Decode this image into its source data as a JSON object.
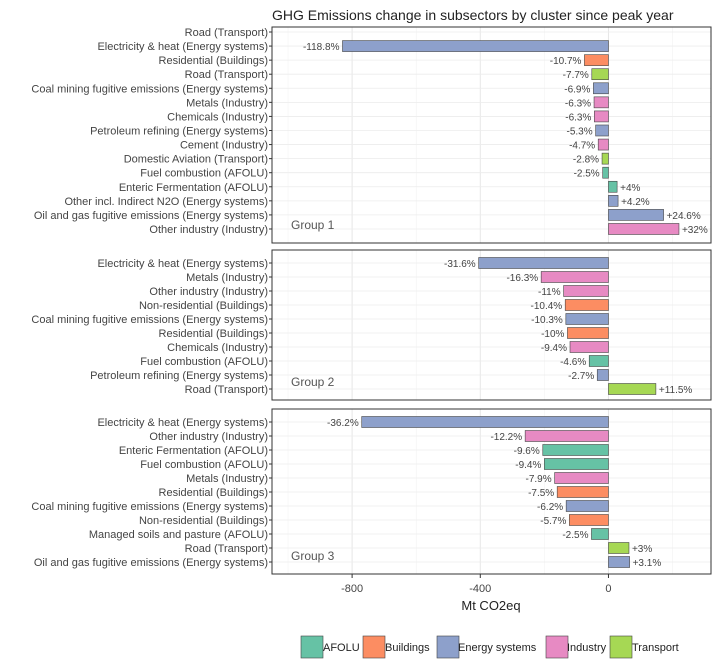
{
  "chart_data": {
    "type": "bar",
    "orientation": "horizontal",
    "title": "GHG Emissions change in subsectors by cluster since peak year",
    "xlabel": "Mt CO2eq",
    "xlim": [
      -1050,
      320
    ],
    "xticks": [
      -800,
      -400,
      0
    ],
    "xtick_labels": [
      "-800",
      "-400",
      "0"
    ],
    "grid": true,
    "legend_position": "bottom",
    "colors": {
      "AFOLU": "#66c2a5",
      "Buildings": "#fc8d62",
      "Energy systems": "#8da0cb",
      "Industry": "#e78ac3",
      "Transport": "#a6d854"
    },
    "legend": [
      "AFOLU",
      "Buildings",
      "Energy systems",
      "Industry",
      "Transport"
    ],
    "panels": [
      {
        "label": "Group 1",
        "bars": [
          {
            "category": "Road  (Transport)",
            "sector": "",
            "value": null,
            "label": ""
          },
          {
            "category": "Electricity & heat (Energy systems)",
            "sector": "Energy systems",
            "value": -830,
            "label": "-118.8%"
          },
          {
            "category": "Residential (Buildings)",
            "sector": "Buildings",
            "value": -75,
            "label": "-10.7%"
          },
          {
            "category": "Road  (Transport)",
            "sector": "Transport",
            "value": -52,
            "label": "-7.7%"
          },
          {
            "category": "Coal mining fugitive emissions (Energy systems)",
            "sector": "Energy systems",
            "value": -47,
            "label": "-6.9%"
          },
          {
            "category": "Metals (Industry)",
            "sector": "Industry",
            "value": -45,
            "label": "-6.3%"
          },
          {
            "category": "Chemicals (Industry)",
            "sector": "Industry",
            "value": -44,
            "label": "-6.3%"
          },
          {
            "category": "Petroleum refining (Energy systems)",
            "sector": "Energy systems",
            "value": -40,
            "label": "-5.3%"
          },
          {
            "category": "Cement (Industry)",
            "sector": "Industry",
            "value": -32,
            "label": "-4.7%"
          },
          {
            "category": "Domestic Aviation (Transport)",
            "sector": "Transport",
            "value": -20,
            "label": "-2.8%"
          },
          {
            "category": "Fuel combustion (AFOLU)",
            "sector": "AFOLU",
            "value": -18,
            "label": "-2.5%"
          },
          {
            "category": "Enteric Fermentation (AFOLU)",
            "sector": "AFOLU",
            "value": 27,
            "label": "+4%"
          },
          {
            "category": "Other incl. Indirect N2O (Energy systems)",
            "sector": "Energy systems",
            "value": 30,
            "label": "+4.2%"
          },
          {
            "category": "Oil and gas fugitive emissions (Energy systems)",
            "sector": "Energy systems",
            "value": 172,
            "label": "+24.6%"
          },
          {
            "category": "Other industry (Industry)",
            "sector": "Industry",
            "value": 220,
            "label": "+32%"
          }
        ]
      },
      {
        "label": "Group 2",
        "bars": [
          {
            "category": "Electricity & heat (Energy systems)",
            "sector": "Energy systems",
            "value": -405,
            "label": "-31.6%"
          },
          {
            "category": "Metals (Industry)",
            "sector": "Industry",
            "value": -210,
            "label": "-16.3%"
          },
          {
            "category": "Other industry (Industry)",
            "sector": "Industry",
            "value": -140,
            "label": "-11%"
          },
          {
            "category": "Non-residential (Buildings)",
            "sector": "Buildings",
            "value": -135,
            "label": "-10.4%"
          },
          {
            "category": "Coal mining fugitive emissions (Energy systems)",
            "sector": "Energy systems",
            "value": -133,
            "label": "-10.3%"
          },
          {
            "category": "Residential (Buildings)",
            "sector": "Buildings",
            "value": -128,
            "label": "-10%"
          },
          {
            "category": "Chemicals (Industry)",
            "sector": "Industry",
            "value": -120,
            "label": "-9.4%"
          },
          {
            "category": "Fuel combustion (AFOLU)",
            "sector": "AFOLU",
            "value": -60,
            "label": "-4.6%"
          },
          {
            "category": "Petroleum refining (Energy systems)",
            "sector": "Energy systems",
            "value": -35,
            "label": "-2.7%"
          },
          {
            "category": "Road  (Transport)",
            "sector": "Transport",
            "value": 148,
            "label": "+11.5%"
          }
        ]
      },
      {
        "label": "Group 3",
        "bars": [
          {
            "category": "Electricity & heat (Energy systems)",
            "sector": "Energy systems",
            "value": -770,
            "label": "-36.2%"
          },
          {
            "category": "Other industry (Industry)",
            "sector": "Industry",
            "value": -260,
            "label": "-12.2%"
          },
          {
            "category": "Enteric Fermentation (AFOLU)",
            "sector": "AFOLU",
            "value": -205,
            "label": "-9.6%"
          },
          {
            "category": "Fuel combustion (AFOLU)",
            "sector": "AFOLU",
            "value": -200,
            "label": "-9.4%"
          },
          {
            "category": "Metals (Industry)",
            "sector": "Industry",
            "value": -168,
            "label": "-7.9%"
          },
          {
            "category": "Residential (Buildings)",
            "sector": "Buildings",
            "value": -160,
            "label": "-7.5%"
          },
          {
            "category": "Coal mining fugitive emissions (Energy systems)",
            "sector": "Energy systems",
            "value": -132,
            "label": "-6.2%"
          },
          {
            "category": "Non-residential (Buildings)",
            "sector": "Buildings",
            "value": -122,
            "label": "-5.7%"
          },
          {
            "category": "Managed soils and pasture (AFOLU)",
            "sector": "AFOLU",
            "value": -53,
            "label": "-2.5%"
          },
          {
            "category": "Road  (Transport)",
            "sector": "Transport",
            "value": 64,
            "label": "+3%"
          },
          {
            "category": "Oil and gas fugitive emissions (Energy systems)",
            "sector": "Energy systems",
            "value": 66,
            "label": "+3.1%"
          }
        ]
      }
    ]
  }
}
